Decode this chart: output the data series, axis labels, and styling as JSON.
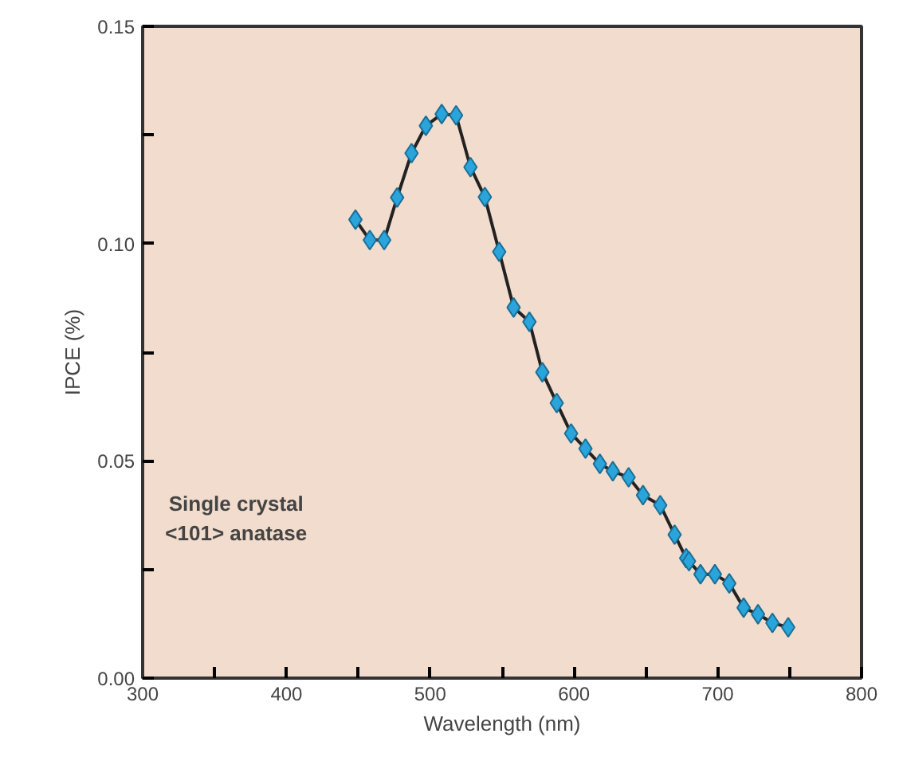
{
  "chart_data": {
    "type": "line",
    "xlabel": "Wavelength (nm)",
    "ylabel": "IPCE (%)",
    "x": [
      448,
      458,
      468,
      477,
      487,
      497,
      508,
      518,
      528,
      538,
      548,
      558,
      569,
      578,
      588,
      598,
      608,
      618,
      627,
      638,
      648,
      660,
      670,
      678,
      680,
      688,
      698,
      708,
      718,
      728,
      738,
      749
    ],
    "series": [
      {
        "color": "#2aa5dc",
        "values": [
          0.1055,
          0.1008,
          0.1008,
          0.1106,
          0.1208,
          0.1271,
          0.1298,
          0.1295,
          0.1176,
          0.1107,
          0.0981,
          0.0853,
          0.082,
          0.0704,
          0.0633,
          0.0563,
          0.0528,
          0.0493,
          0.0476,
          0.0462,
          0.0421,
          0.0398,
          0.033,
          0.0276,
          0.0269,
          0.0239,
          0.0239,
          0.0218,
          0.0162,
          0.0147,
          0.0127,
          0.0117
        ]
      }
    ],
    "marker": "diamond",
    "line_style": "solid",
    "grid": false,
    "xlim": [
      300,
      800
    ],
    "ylim": [
      0,
      0.15
    ],
    "xticks": [
      300,
      {
        "value": 350,
        "label": null
      },
      400,
      {
        "value": 450,
        "label": null
      },
      500,
      {
        "value": 550,
        "label": null
      },
      600,
      {
        "value": 650,
        "label": null
      },
      700,
      {
        "value": 750,
        "label": null
      },
      800
    ],
    "yticks": [
      {
        "value": 0,
        "label": "0.00"
      },
      {
        "value": 0.025,
        "label": null
      },
      {
        "value": 0.05,
        "label": "0.05"
      },
      {
        "value": 0.075,
        "label": null
      },
      {
        "value": 0.1,
        "label": "0.10"
      },
      {
        "value": 0.125,
        "label": null
      },
      {
        "value": 0.15,
        "label": "0.15"
      }
    ],
    "annotations": [
      "Single crystal\n<101> anatase"
    ]
  }
}
